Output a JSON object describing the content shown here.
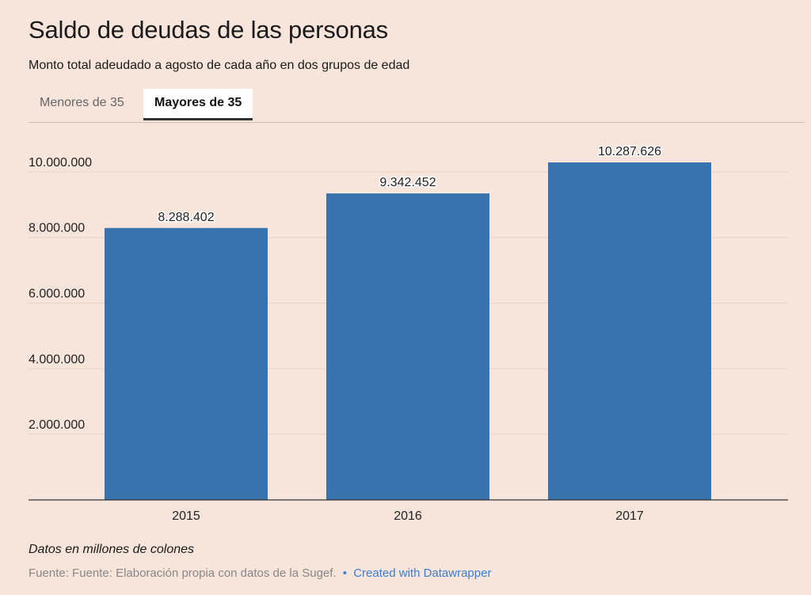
{
  "header": {
    "title": "Saldo de deudas de las personas",
    "subtitle": "Monto total adeudado a agosto de cada año en dos grupos de edad"
  },
  "tabs": [
    {
      "label": "Menores de 35",
      "active": false
    },
    {
      "label": "Mayores de 35",
      "active": true
    }
  ],
  "chart_data": {
    "type": "bar",
    "categories": [
      "2015",
      "2016",
      "2017"
    ],
    "values": [
      8288402,
      9342452,
      10287626
    ],
    "value_labels": [
      "8.288.402",
      "9.342.452",
      "10.287.626"
    ],
    "y_ticks": [
      2000000,
      4000000,
      6000000,
      8000000,
      10000000
    ],
    "y_tick_labels": [
      "2.000.000",
      "4.000.000",
      "6.000.000",
      "8.000.000",
      "10.000.000"
    ],
    "ylim": [
      0,
      10287626
    ],
    "grid": true,
    "bar_color": "#3873ad"
  },
  "footer": {
    "note": "Datos en millones de colones",
    "source": "Fuente: Fuente: Elaboración propia con datos de la Sugef.",
    "separator": "•",
    "credit": "Created with Datawrapper"
  },
  "colors": {
    "background": "#f7e4da",
    "bar": "#3873ad",
    "link": "#3b7fd1"
  }
}
